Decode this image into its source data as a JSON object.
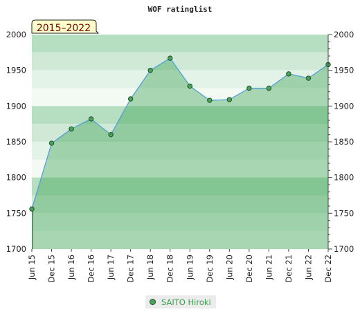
{
  "chart_data": {
    "type": "area",
    "title": "WOF ratinglist",
    "period_badge": "2015–2022",
    "categories": [
      "Jun 15",
      "Dec 15",
      "Jun 16",
      "Dec 16",
      "Jun 17",
      "Dec 17",
      "Jun 18",
      "Dec 18",
      "Jun 19",
      "Dec 19",
      "Jun 20",
      "Dec 20",
      "Jun 21",
      "Dec 21",
      "Jun 22",
      "Dec 22"
    ],
    "x_ticks": [
      "Jun 15",
      "Dec 15",
      "Jun 16",
      "Dec 16",
      "Jun 17",
      "Dec 17",
      "Jun 18",
      "Dec 18",
      "Jun 19",
      "Dec 19",
      "Jun 20",
      "Dec 20",
      "Jun 21",
      "Dec 21",
      "Jun 22",
      "Dec 22"
    ],
    "series": [
      {
        "name": "SAITO Hiroki",
        "values": [
          1756,
          1848,
          1868,
          1882,
          1860,
          1910,
          1950,
          1967,
          1928,
          1908,
          1909,
          1925,
          1925,
          1945,
          1939,
          1958
        ]
      }
    ],
    "ylim": [
      1700,
      2000
    ],
    "y_ticks": [
      1700,
      1750,
      1800,
      1850,
      1900,
      1950,
      2000
    ],
    "y_axis_sides": "both",
    "legend_position": "bottom-center",
    "grid": true,
    "colors": {
      "line": "#4f9bd6",
      "area": "#2f9a48",
      "marker_fill": "#4aa35a",
      "marker_stroke": "#1f4f27",
      "band_dark": "#b6dfc2",
      "band_mid": "#cfe9d6",
      "band_light": "#e4f3e8",
      "band_lightest": "#f3faf4",
      "badge_bg": "#ffffcc",
      "badge_text": "#7a0000"
    }
  }
}
